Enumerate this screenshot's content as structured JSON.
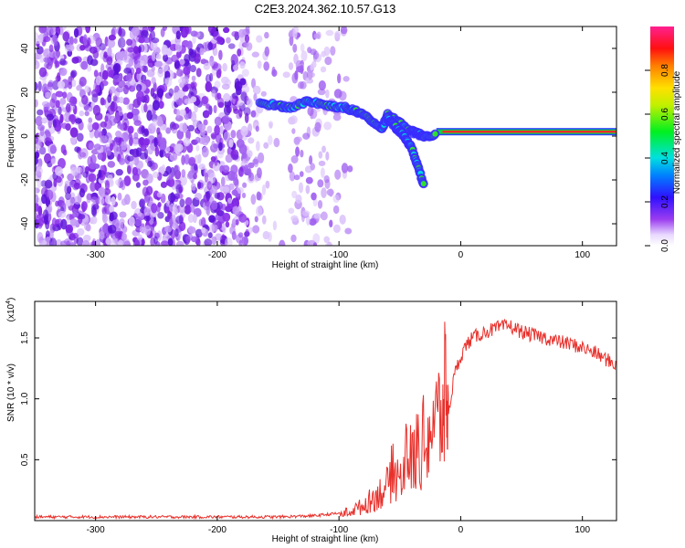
{
  "title": "C2E3.2024.362.10.57.G13",
  "colors": {
    "snr_line": "#e8302b",
    "spectrogram_ridge_low": "#2a4bff",
    "spectrogram_noise": "#7a1fe0",
    "axis": "#000000"
  },
  "chart_data": [
    {
      "type": "heatmap",
      "xlabel": "Height of straight line (km)",
      "ylabel": "Frequency (Hz)",
      "xlim": [
        -350,
        128
      ],
      "ylim": [
        -50,
        50
      ],
      "xticks": [
        -300,
        -200,
        -100,
        0,
        100
      ],
      "yticks": [
        -40,
        -20,
        0,
        20,
        40
      ],
      "colorbar": {
        "label": "Normalized spectral amplitude",
        "range": [
          0,
          1
        ],
        "ticks": [
          0.0,
          0.2,
          0.4,
          0.6,
          0.8
        ],
        "colormap": "rainbow (white-purple-blue-cyan-green-yellow-red-pink)"
      },
      "features": {
        "noise_region_x": [
          -350,
          -100
        ],
        "signal_track": {
          "x": [
            -165,
            -150,
            -140,
            -125,
            -110,
            -95,
            -85,
            -75,
            -65,
            -60,
            -50,
            -40,
            -35,
            -30,
            -20,
            -10,
            0,
            20,
            60,
            100,
            128
          ],
          "y": [
            15,
            14,
            13,
            16,
            14,
            13,
            11,
            8,
            3,
            10,
            6,
            2,
            1,
            0,
            1,
            2,
            2,
            2,
            2,
            2,
            2
          ]
        },
        "branch_track": {
          "x": [
            -60,
            -55,
            -50,
            -45,
            -40,
            -35,
            -30
          ],
          "y": [
            8,
            5,
            2,
            -1,
            -6,
            -14,
            -23
          ]
        },
        "steady_tone_hz": 2
      }
    },
    {
      "type": "line",
      "xlabel": "Height of straight line (km)",
      "ylabel": "SNR (10 * v/v)",
      "multiplier_label": "(x10",
      "multiplier_exp": "4",
      "xlim": [
        -350,
        128
      ],
      "ylim": [
        0,
        1.8
      ],
      "xticks": [
        -300,
        -200,
        -100,
        0,
        100
      ],
      "yticks": [
        0.5,
        1.0,
        1.5
      ],
      "ytick_labels": [
        "0.5",
        "1.0",
        "1.5"
      ],
      "grid": false,
      "series": [
        {
          "x": [
            -350,
            -300,
            -250,
            -200,
            -150,
            -120,
            -100,
            -90,
            -80,
            -70,
            -60,
            -55,
            -50,
            -45,
            -40,
            -35,
            -30,
            -25,
            -20,
            -15,
            -12,
            -10,
            -5,
            0,
            5,
            10,
            20,
            30,
            40,
            50,
            60,
            70,
            80,
            90,
            100,
            110,
            120,
            128
          ],
          "values": [
            0.03,
            0.03,
            0.03,
            0.03,
            0.03,
            0.04,
            0.06,
            0.1,
            0.15,
            0.25,
            0.35,
            0.55,
            0.4,
            0.7,
            0.6,
            0.75,
            0.8,
            0.95,
            1.0,
            1.1,
            1.35,
            0.9,
            1.2,
            1.35,
            1.45,
            1.5,
            1.55,
            1.58,
            1.6,
            1.55,
            1.52,
            1.5,
            1.47,
            1.45,
            1.42,
            1.38,
            1.32,
            1.28
          ]
        }
      ]
    }
  ]
}
